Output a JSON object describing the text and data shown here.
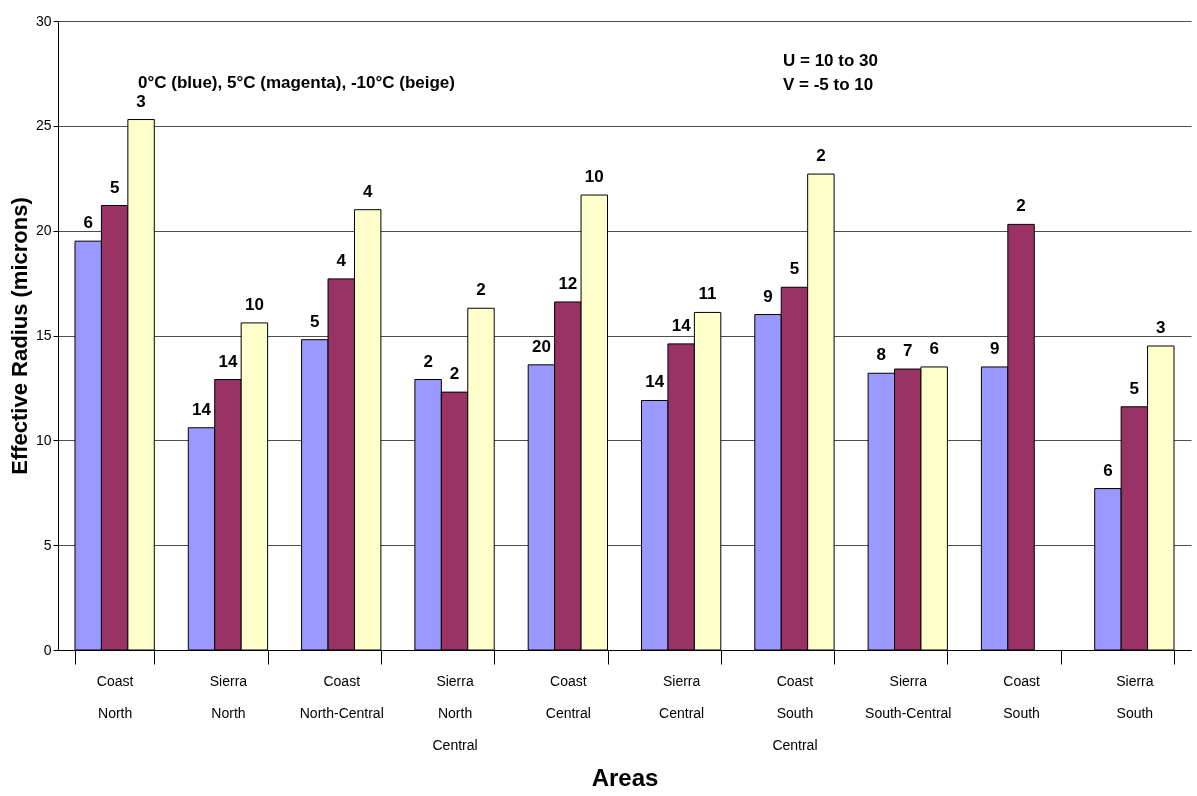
{
  "chart_data": {
    "type": "bar",
    "xlabel": "Areas",
    "ylabel": "Effective Radius (microns)",
    "categories": [
      "Coast North",
      "Sierra North",
      "Coast North-Central",
      "Sierra North Central",
      "Coast Central",
      "Sierra Central",
      "Coast South Central",
      "Sierra South-Central",
      "Coast South",
      "Sierra South"
    ],
    "series": [
      {
        "color": "#9999ff",
        "values": [
          19.5,
          10.6,
          14.8,
          12.9,
          13.6,
          11.9,
          16.0,
          13.2,
          13.5,
          7.7
        ]
      },
      {
        "color": "#993366",
        "values": [
          21.2,
          12.9,
          17.7,
          12.3,
          16.6,
          14.6,
          17.3,
          13.4,
          20.3,
          11.6
        ]
      },
      {
        "color": "#ffffcc",
        "values": [
          25.3,
          15.6,
          21.0,
          16.3,
          21.7,
          16.1,
          22.7,
          13.5,
          null,
          14.5
        ]
      }
    ],
    "ylim": [
      0,
      30
    ],
    "yticks": [
      0,
      5,
      10,
      15,
      20,
      25,
      30
    ],
    "grid": "y",
    "legend": false,
    "annotations": [
      "0°C (blue), 5°C (magenta), -10°C (beige)",
      "U = 10 to 30",
      "V = -5 to 10",
      "6",
      "5",
      "3",
      "14",
      "14",
      "10",
      "5",
      "4",
      "4",
      "2",
      "2",
      "2",
      "20",
      "12",
      "10",
      "14",
      "14",
      "11",
      "9",
      "5",
      "2",
      "8",
      "7",
      "6",
      "9",
      "2",
      "6",
      "5",
      "3"
    ]
  }
}
